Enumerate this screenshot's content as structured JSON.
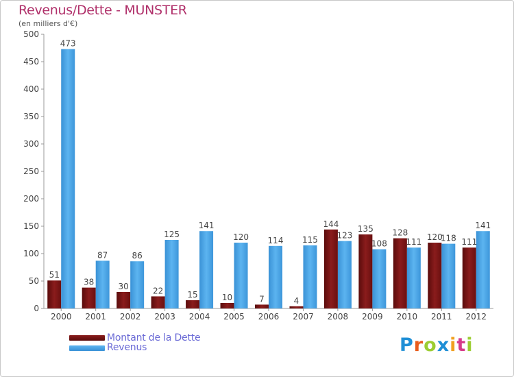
{
  "header": {
    "title": "Revenus/Dette - MUNSTER",
    "subtitle": "(en milliers d'€)"
  },
  "legend": {
    "dette": "Montant de la Dette",
    "revenus": "Revenus"
  },
  "logo": {
    "text": "Proxiti"
  },
  "colors": {
    "dette": "#7a1414",
    "revenus": "#4aa6e6",
    "axis": "#999999"
  },
  "chart_data": {
    "type": "bar",
    "title": "Revenus/Dette - MUNSTER",
    "ylabel": "(en milliers d'€)",
    "xlabel": "",
    "ylim": [
      0,
      500
    ],
    "yticks": [
      0,
      50,
      100,
      150,
      200,
      250,
      300,
      350,
      400,
      450,
      500
    ],
    "categories": [
      "2000",
      "2001",
      "2002",
      "2003",
      "2004",
      "2005",
      "2006",
      "2007",
      "2008",
      "2009",
      "2010",
      "2011",
      "2012"
    ],
    "series": [
      {
        "name": "Montant de la Dette",
        "values": [
          51,
          38,
          30,
          22,
          15,
          10,
          7,
          4,
          144,
          135,
          128,
          120,
          111
        ]
      },
      {
        "name": "Revenus",
        "values": [
          473,
          87,
          86,
          125,
          141,
          120,
          114,
          115,
          123,
          108,
          111,
          118,
          141
        ]
      }
    ],
    "legend_position": "bottom-left"
  }
}
